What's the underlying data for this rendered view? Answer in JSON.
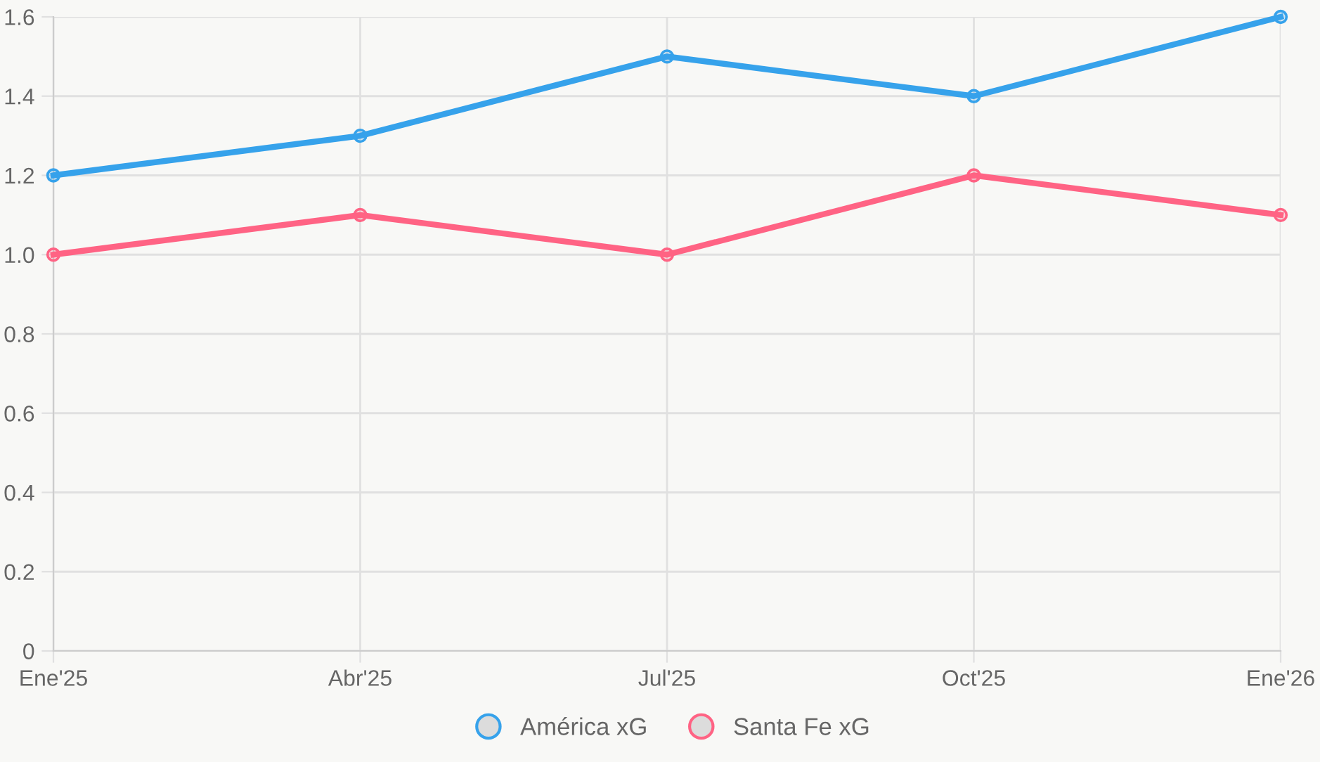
{
  "chart_data": {
    "type": "line",
    "categories": [
      "Ene'25",
      "Abr'25",
      "Jul'25",
      "Oct'25",
      "Ene'26"
    ],
    "series": [
      {
        "name": "América xG",
        "color": "#36a2eb",
        "values": [
          1.2,
          1.3,
          1.5,
          1.4,
          1.6
        ]
      },
      {
        "name": "Santa Fe xG",
        "color": "#ff6384",
        "values": [
          1.0,
          1.1,
          1.0,
          1.2,
          1.1
        ]
      }
    ],
    "ylim": [
      0,
      1.6
    ],
    "yticks": [
      0,
      {
        "value": 0.2,
        "label": "0.2"
      },
      {
        "value": 0.4,
        "label": "0.4"
      },
      {
        "value": 0.6,
        "label": "0.6"
      },
      {
        "value": 0.8,
        "label": "0.8"
      },
      {
        "value": 1.0,
        "label": "1.0"
      },
      {
        "value": 1.2,
        "label": "1.2"
      },
      {
        "value": 1.4,
        "label": "1.4"
      },
      {
        "value": 1.6,
        "label": "1.6"
      }
    ],
    "grid": true,
    "legend": "bottom",
    "marker": "circle",
    "line_style": "solid"
  }
}
